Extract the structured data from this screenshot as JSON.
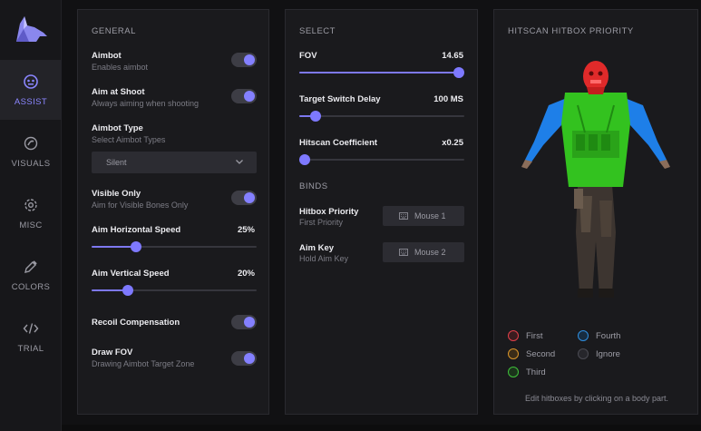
{
  "sidebar": {
    "items": [
      {
        "label": "ASSIST",
        "icon": "robot-icon",
        "active": true
      },
      {
        "label": "VISUALS",
        "icon": "eye-icon",
        "active": false
      },
      {
        "label": "MISC",
        "icon": "gear-icon",
        "active": false
      },
      {
        "label": "COLORS",
        "icon": "eyedropper-icon",
        "active": false
      },
      {
        "label": "TRIAL",
        "icon": "code-icon",
        "active": false
      }
    ]
  },
  "general": {
    "title": "GENERAL",
    "aimbot": {
      "label": "Aimbot",
      "sub": "Enables aimbot",
      "on": true
    },
    "aim_at_shoot": {
      "label": "Aim at Shoot",
      "sub": "Always aiming when shooting",
      "on": true
    },
    "aimbot_type": {
      "label": "Aimbot Type",
      "sub": "Select Aimbot Types",
      "selected": "Silent"
    },
    "visible_only": {
      "label": "Visible Only",
      "sub": "Aim for Visible Bones Only",
      "on": true
    },
    "aim_h_speed": {
      "label": "Aim Horizontal Speed",
      "value_text": "25%",
      "value": 25
    },
    "aim_v_speed": {
      "label": "Aim Vertical Speed",
      "value_text": "20%",
      "value": 20
    },
    "recoil": {
      "label": "Recoil Compensation",
      "on": true
    },
    "draw_fov": {
      "label": "Draw FOV",
      "sub": "Drawing Aimbot Target Zone",
      "on": true
    }
  },
  "select": {
    "title": "SELECT",
    "fov": {
      "label": "FOV",
      "value_text": "14.65",
      "fraction": 1.0
    },
    "switch_delay": {
      "label": "Target Switch Delay",
      "value_text": "100 MS",
      "fraction": 0.07
    },
    "hitscan_coef": {
      "label": "Hitscan Coefficient",
      "value_text": "x0.25",
      "fraction": 0.0
    },
    "binds_title": "BINDS",
    "hitbox_priority": {
      "label": "Hitbox Priority",
      "sub": "First Priority",
      "key": "Mouse 1"
    },
    "aim_key": {
      "label": "Aim Key",
      "sub": "Hold Aim Key",
      "key": "Mouse 2"
    }
  },
  "hitscan": {
    "title": "HITSCAN HITBOX PRIORITY",
    "legend": [
      {
        "label": "First",
        "color": "#e2404a"
      },
      {
        "label": "Second",
        "color": "#d9952a"
      },
      {
        "label": "Third",
        "color": "#3fbf3a"
      },
      {
        "label": "Fourth",
        "color": "#2f8fe0"
      },
      {
        "label": "Ignore",
        "color": "#4a4a52"
      }
    ],
    "hint": "Edit hitboxes by clicking on a body part."
  },
  "colors": {
    "accent": "#8480ff",
    "head": "#e02a2a",
    "torso": "#33c21f",
    "arms": "#1e7fe8"
  }
}
